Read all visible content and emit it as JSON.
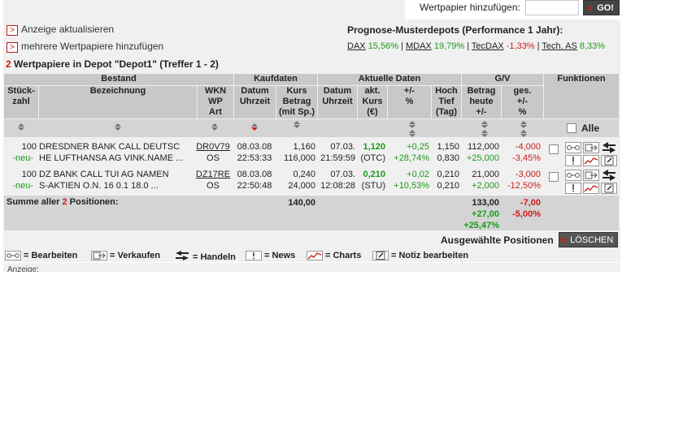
{
  "search": {
    "label": "Wertpapier hinzufügen:",
    "placeholder": "",
    "go_label": "GO!"
  },
  "links": {
    "refresh": "Anzeige aktualisieren",
    "add_more": "mehrere Wertpapiere hinzufügen"
  },
  "forecast": {
    "title": "Prognose-Musterdepots (Performance 1 Jahr):",
    "indices": [
      {
        "name": "DAX",
        "value": "15,56%",
        "dir": "pos"
      },
      {
        "name": "MDAX",
        "value": "19,79%",
        "dir": "pos"
      },
      {
        "name": "TecDAX",
        "value": "-1,33%",
        "dir": "neg"
      },
      {
        "name": "Tech. AS",
        "value": "8,33%",
        "dir": "pos"
      }
    ],
    "separator": "|"
  },
  "depot": {
    "count": "2",
    "title_text": "Wertpapiere in Depot \"Depot1\" (Treffer 1 - 2)"
  },
  "groups": {
    "bestand": "Bestand",
    "kaufdaten": "Kaufdaten",
    "aktuelle": "Aktuelle Daten",
    "guv": "G/V",
    "funktionen": "Funktionen"
  },
  "columns": {
    "stueck": "Stück-\nzahl",
    "bezeichnung": "Bezeichnung",
    "wkn": "WKN\nWP\nArt",
    "kauf_datum": "Datum\nUhrzeit",
    "kurs_betrag": "Kurs\nBetrag\n(mit Sp.)",
    "akt_datum": "Datum\nUhrzeit",
    "akt_kurs": "akt.\nKurs\n(€)",
    "plusminus": "+/-\n%",
    "hoch_tief": "Hoch\nTief\n(Tag)",
    "betrag": "Betrag\nheute\n+/-",
    "ges": "ges.\n+/-\n%"
  },
  "alle_label": "Alle",
  "rows": [
    {
      "qty": "100",
      "status": "-neu-",
      "name1": "DRESDNER BANK CALL DEUTSC",
      "name2": "HE LUFTHANSA AG VINK.NAME ...",
      "wkn": "DR0V79",
      "art": "OS",
      "kauf_date": "08.03.08",
      "kauf_time": "22:53:33",
      "kauf_kurs": "1,160",
      "kauf_betrag": "116,000",
      "akt_date": "07.03.",
      "akt_time": "21:59:59",
      "akt_kurs": "1,120",
      "boerse": "(OTC)",
      "diff": "+0,25",
      "diff_pct": "+28,74%",
      "hoch": "1,150",
      "tief": "0,830",
      "betrag": "112,000",
      "betrag_diff": "+25,000",
      "ges": "-4,000",
      "ges_pct": "-3,45%"
    },
    {
      "qty": "100",
      "status": "-neu-",
      "name1": "DZ BANK CALL TUI AG NAMEN",
      "name2": "S-AKTIEN O.N. 16 0.1 18.0 ...",
      "wkn": "DZ17RE",
      "art": "OS",
      "kauf_date": "08.03.08",
      "kauf_time": "22:50:48",
      "kauf_kurs": "0,240",
      "kauf_betrag": "24,000",
      "akt_date": "07.03.",
      "akt_time": "12:08:28",
      "akt_kurs": "0,210",
      "boerse": "(STU)",
      "diff": "+0,02",
      "diff_pct": "+10,53%",
      "hoch": "0,210",
      "tief": "0,210",
      "betrag": "21,000",
      "betrag_diff": "+2,000",
      "ges": "-3,000",
      "ges_pct": "-12,50%"
    }
  ],
  "summary": {
    "label_pre": "Summe aller",
    "count": "2",
    "label_post": "Positionen:",
    "kauf_total": "140,00",
    "betrag": "133,00",
    "betrag_diff": "+27,00",
    "betrag_pct": "+25,47%",
    "ges": "-7,00",
    "ges_pct": "-5,00%"
  },
  "selected": {
    "label": "Ausgewählte Positionen",
    "delete": "LÖSCHEN"
  },
  "legend": {
    "bearbeiten": "= Bearbeiten",
    "verkaufen": "= Verkaufen",
    "handeln": "= Handeln",
    "news": "= News",
    "charts": "= Charts",
    "notiz": "= Notiz bearbeiten"
  },
  "anzeige_cut": "Anzeige:",
  "colors": {
    "positive": "#1a9a1a",
    "negative": "#d01818",
    "header_bg": "#c8c8c8",
    "row_bg": "#f0f0f0"
  }
}
